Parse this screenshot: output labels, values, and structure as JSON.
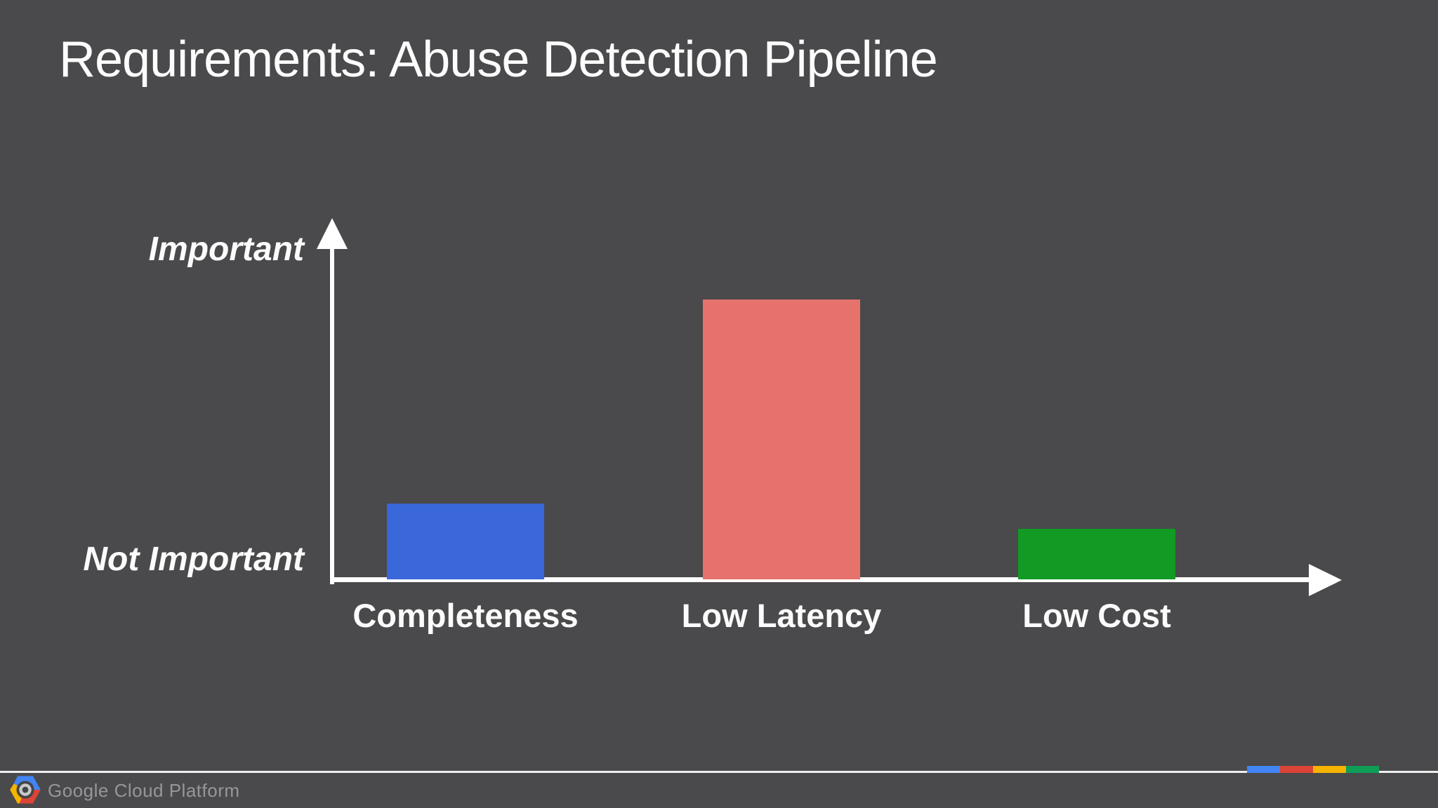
{
  "slide": {
    "title": "Requirements: Abuse Detection Pipeline",
    "background_color": "#4a494b"
  },
  "chart_data": {
    "type": "bar",
    "title": "Requirements: Abuse Detection Pipeline",
    "categories": [
      "Completeness",
      "Low Latency",
      "Low Cost"
    ],
    "values": [
      0.21,
      0.78,
      0.14
    ],
    "colors": [
      "#3a67da",
      "#e5736c",
      "#119b24"
    ],
    "xlabel": "",
    "ylabel": "",
    "ylim": [
      0,
      1
    ],
    "grid": false,
    "legend": false,
    "yaxis": {
      "top_label": "Important",
      "bottom_label": "Not Important",
      "axis_color": "#ffffff"
    }
  },
  "footer": {
    "brand": "Google Cloud Platform",
    "logo": "google-cloud-platform-logo",
    "strip_colors": [
      "#4285f4",
      "#db4437",
      "#f4b400",
      "#0f9d58"
    ],
    "logo_colors": {
      "blue": "#4285f4",
      "red": "#db4437",
      "yellow": "#f4b400"
    }
  }
}
